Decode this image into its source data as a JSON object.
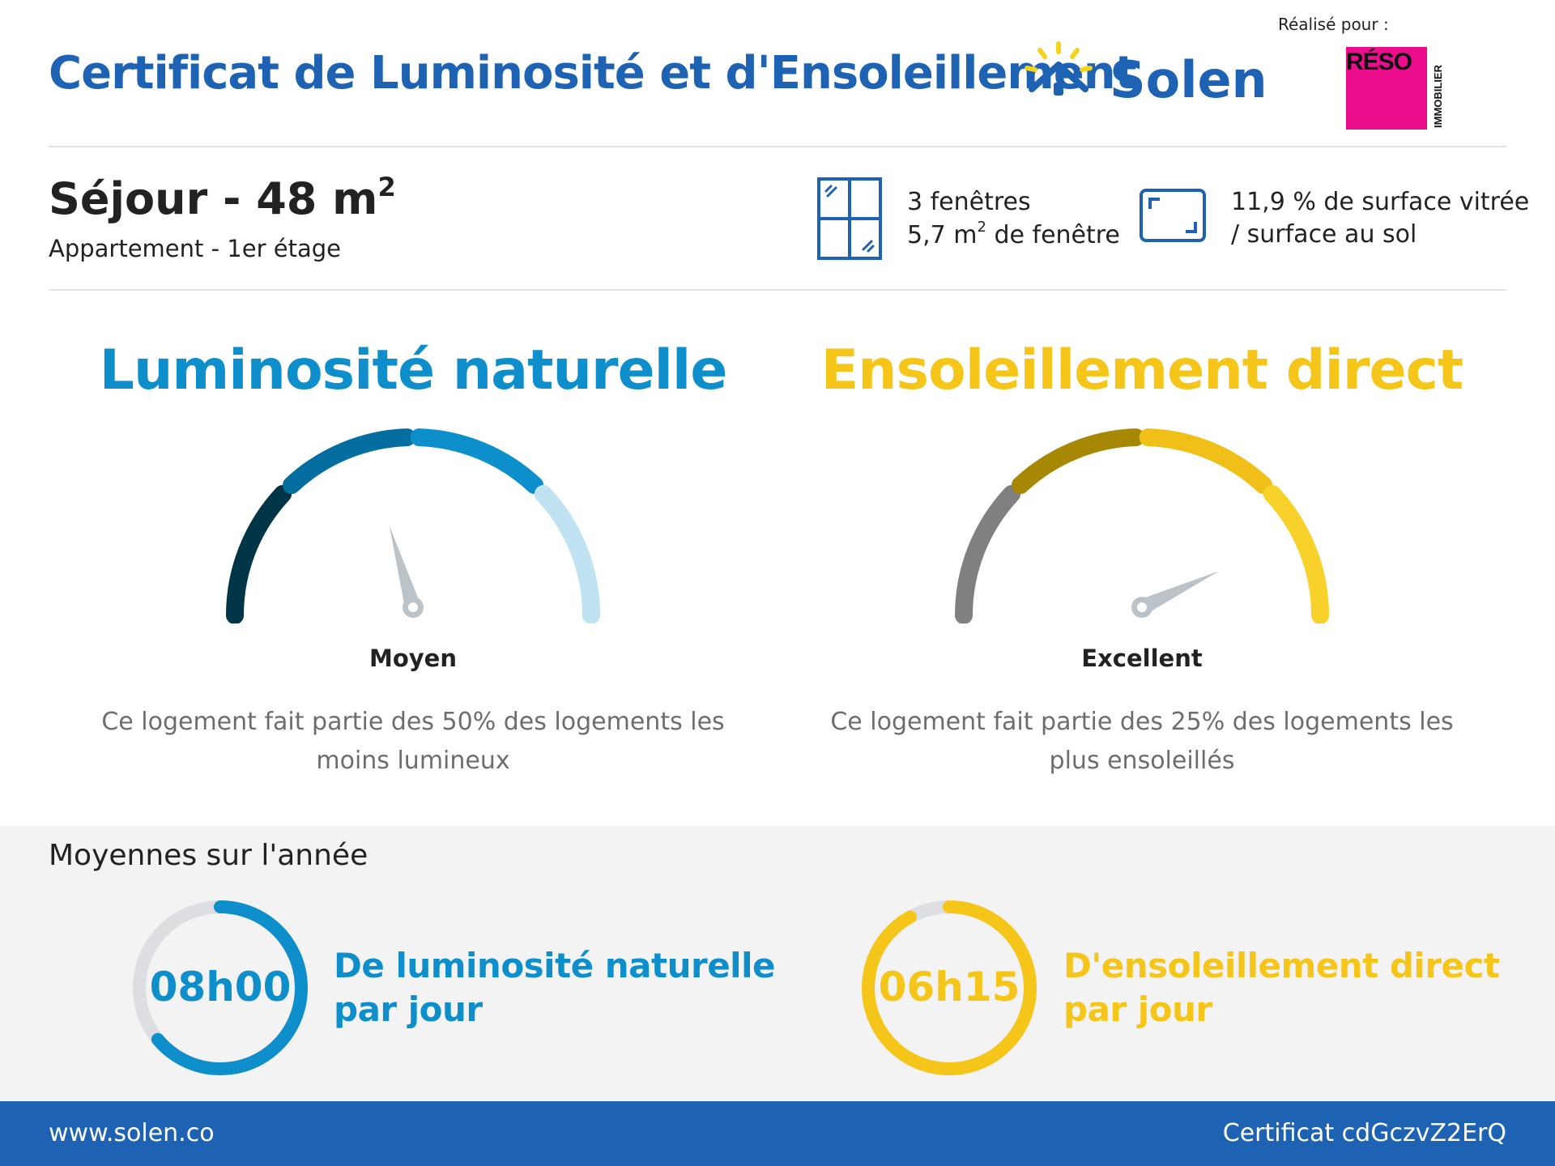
{
  "header": {
    "title": "Certificat de Luminosité et d'Ensoleillement",
    "brand": "Solen",
    "made_for_label": "Réalisé pour :",
    "partner_logo_text": "RÉSO",
    "partner_logo_subtext": "IMMOBILIER",
    "brand_color": "#1e62b4"
  },
  "room": {
    "name": "Séjour - 48 m",
    "name_sup": "2",
    "subtitle": "Appartement - 1er étage",
    "windows_count": "3 fenêtres",
    "windows_area": "5,7 m",
    "windows_area_sup": "2",
    "windows_area_suffix": " de fenêtre",
    "surface_line1": "11,9 % de surface vitrée",
    "surface_line2": "/ surface au sol"
  },
  "luminosity": {
    "title": "Luminosité naturelle",
    "rating": "Moyen",
    "description": "Ce logement fait partie des 50% des logements les moins lumineux",
    "gauge_level": 0.41,
    "color": "#0e8fcb",
    "segment_colors": [
      "#003447",
      "#046ea0",
      "#0c8fcb",
      "#c0e3f4"
    ]
  },
  "sunshine": {
    "title": "Ensoleillement direct",
    "rating": "Excellent",
    "description": "Ce logement fait partie des 25% des logements les plus ensoleillés",
    "gauge_level": 0.86,
    "color": "#f5c619",
    "segment_colors": [
      "#808080",
      "#a78804",
      "#f0c019",
      "#f9d12b"
    ]
  },
  "averages": {
    "title": "Moyennes sur l'année",
    "luminosity_value": "08h00",
    "luminosity_label_line1": "De luminosité naturelle",
    "luminosity_label_line2": "par jour",
    "luminosity_fraction": 0.64,
    "sunshine_value": "06h15",
    "sunshine_label_line1": "D'ensoleillement direct",
    "sunshine_label_line2": "par jour",
    "sunshine_fraction": 0.92
  },
  "footer": {
    "url": "www.solen.co",
    "certificate": "Certificat cdGczvZ2ErQ"
  }
}
